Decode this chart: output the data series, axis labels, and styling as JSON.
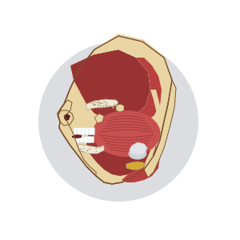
{
  "bg_color": "#ffffff",
  "circle_bg": "#dcdde0",
  "skin_color": "#e8d5a3",
  "skin_mid": "#d4c080",
  "muscle_red": "#993333",
  "muscle_mid": "#b84040",
  "muscle_light": "#c85050",
  "muscle_dark": "#6e1e1e",
  "bone_color": "#ede8d8",
  "bone_speckle": "#b8a880",
  "white_color": "#f2f2f2",
  "outline_color": "#7a5030",
  "yellow_cord": "#d4aa30",
  "gray_color": "#c8c8d0",
  "silver_color": "#d0d4d8"
}
